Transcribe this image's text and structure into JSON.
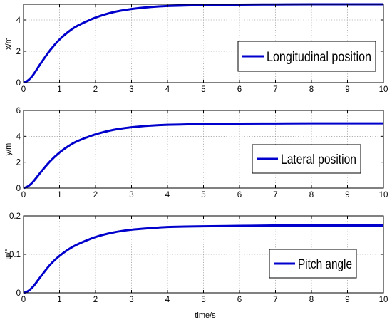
{
  "colors": {
    "series": "#0000cc",
    "axis": "#000000",
    "grid": "#808080",
    "background": "#ffffff"
  },
  "xlabel": "time/s",
  "chart_data": [
    {
      "type": "line",
      "ylabel": "x/m",
      "xlim": [
        0,
        10
      ],
      "ylim": [
        0,
        5
      ],
      "xticks": [
        0,
        1,
        2,
        3,
        4,
        5,
        6,
        7,
        8,
        9,
        10
      ],
      "yticks": [
        0,
        2,
        4
      ],
      "grid": true,
      "legend_position": "bottom-right",
      "series": [
        {
          "name": "Longitudinal position",
          "x": [
            0,
            0.1,
            0.2,
            0.3,
            0.5,
            0.75,
            1,
            1.25,
            1.5,
            2,
            2.5,
            3,
            3.5,
            4,
            5,
            6,
            7,
            8,
            9,
            10
          ],
          "y": [
            0,
            0.1,
            0.3,
            0.6,
            1.3,
            2.1,
            2.75,
            3.25,
            3.63,
            4.15,
            4.5,
            4.7,
            4.82,
            4.89,
            4.95,
            4.98,
            4.99,
            5.0,
            5.0,
            5.0
          ]
        }
      ]
    },
    {
      "type": "line",
      "ylabel": "y/m",
      "xlim": [
        0,
        10
      ],
      "ylim": [
        0,
        6
      ],
      "xticks": [
        0,
        1,
        2,
        3,
        4,
        5,
        6,
        7,
        8,
        9,
        10
      ],
      "yticks": [
        0,
        2,
        4,
        6
      ],
      "grid": true,
      "legend_position": "bottom-right",
      "series": [
        {
          "name": "Lateral position",
          "x": [
            0,
            0.1,
            0.2,
            0.3,
            0.5,
            0.75,
            1,
            1.25,
            1.5,
            2,
            2.5,
            3,
            3.5,
            4,
            5,
            6,
            7,
            8,
            9,
            10
          ],
          "y": [
            0,
            0.1,
            0.3,
            0.6,
            1.3,
            2.1,
            2.75,
            3.25,
            3.63,
            4.15,
            4.5,
            4.7,
            4.82,
            4.89,
            4.95,
            4.98,
            4.99,
            5.0,
            5.0,
            5.0
          ]
        }
      ]
    },
    {
      "type": "line",
      "ylabel": "ψ/°",
      "xlim": [
        0,
        10
      ],
      "ylim": [
        0,
        0.2
      ],
      "xticks": [
        0,
        1,
        2,
        3,
        4,
        5,
        6,
        7,
        8,
        9,
        10
      ],
      "yticks": [
        0,
        0.1,
        0.2
      ],
      "grid": true,
      "legend_position": "bottom-right",
      "series": [
        {
          "name": "Pitch angle",
          "x": [
            0,
            0.1,
            0.2,
            0.3,
            0.5,
            0.75,
            1,
            1.25,
            1.5,
            2,
            2.5,
            3,
            3.5,
            4,
            5,
            6,
            7,
            8,
            9,
            10
          ],
          "y": [
            0,
            0.003,
            0.01,
            0.02,
            0.045,
            0.074,
            0.096,
            0.113,
            0.126,
            0.145,
            0.157,
            0.164,
            0.168,
            0.171,
            0.173,
            0.174,
            0.175,
            0.175,
            0.175,
            0.175
          ]
        }
      ]
    }
  ]
}
